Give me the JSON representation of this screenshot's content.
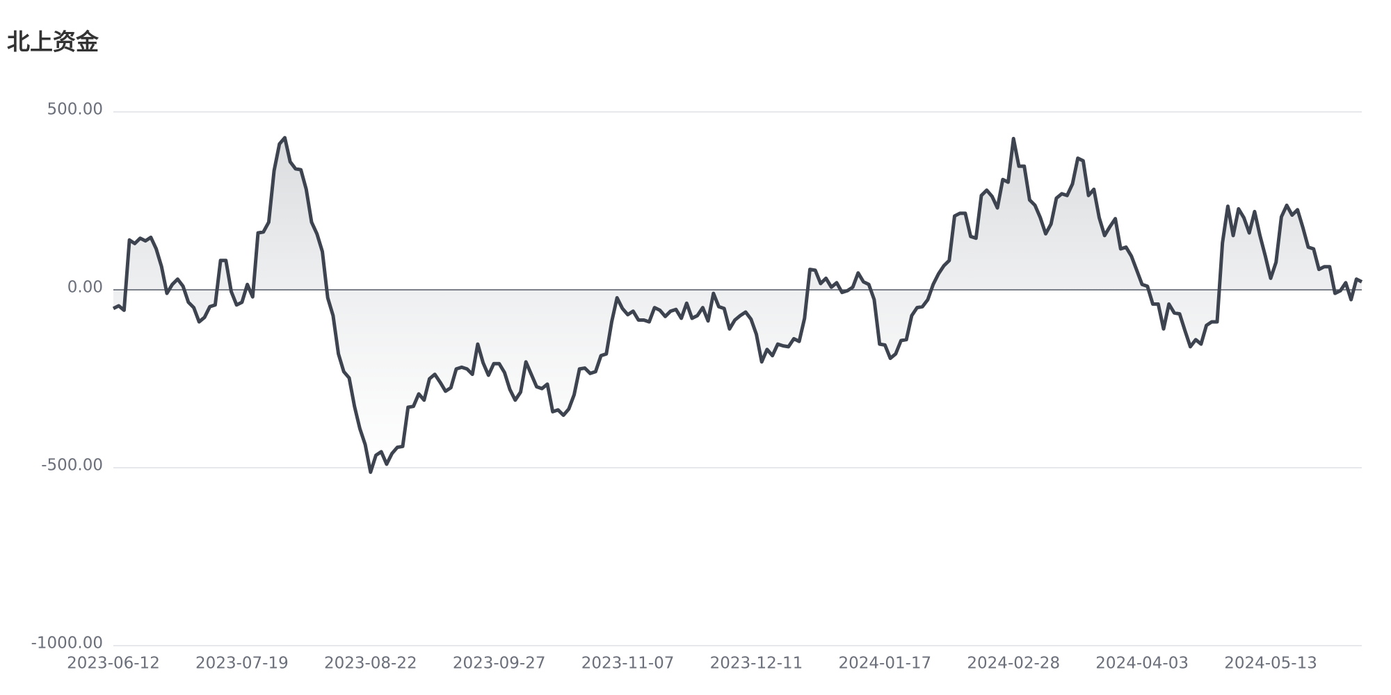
{
  "chart_data": {
    "type": "line",
    "title": "北上资金",
    "categories": [
      "2023-06-12",
      null,
      null,
      null,
      null,
      null,
      null,
      null,
      null,
      null,
      null,
      null,
      null,
      null,
      null,
      null,
      null,
      null,
      null,
      null,
      null,
      null,
      null,
      null,
      "2023-07-19",
      null,
      null,
      null,
      null,
      null,
      null,
      null,
      null,
      null,
      null,
      null,
      null,
      null,
      null,
      null,
      null,
      null,
      null,
      null,
      null,
      null,
      null,
      null,
      "2023-08-22",
      null,
      null,
      null,
      null,
      null,
      null,
      null,
      null,
      null,
      null,
      null,
      null,
      null,
      null,
      null,
      null,
      null,
      null,
      null,
      null,
      null,
      null,
      null,
      "2023-09-27",
      null,
      null,
      null,
      null,
      null,
      null,
      null,
      null,
      null,
      null,
      null,
      null,
      null,
      null,
      null,
      null,
      null,
      null,
      null,
      null,
      null,
      null,
      null,
      "2023-11-07",
      null,
      null,
      null,
      null,
      null,
      null,
      null,
      null,
      null,
      null,
      null,
      null,
      null,
      null,
      null,
      null,
      null,
      null,
      null,
      null,
      null,
      null,
      null,
      "2023-12-11",
      null,
      null,
      null,
      null,
      null,
      null,
      null,
      null,
      null,
      null,
      null,
      null,
      null,
      null,
      null,
      null,
      null,
      null,
      null,
      null,
      null,
      null,
      null,
      "2024-01-17",
      null,
      null,
      null,
      null,
      null,
      null,
      null,
      null,
      null,
      null,
      null,
      null,
      null,
      null,
      null,
      null,
      null,
      null,
      null,
      null,
      null,
      null,
      null,
      "2024-02-28",
      null,
      null,
      null,
      null,
      null,
      null,
      null,
      null,
      null,
      null,
      null,
      null,
      null,
      null,
      null,
      null,
      null,
      null,
      null,
      null,
      null,
      null,
      null,
      "2024-04-03",
      null,
      null,
      null,
      null,
      null,
      null,
      null,
      null,
      null,
      null,
      null,
      null,
      null,
      null,
      null,
      null,
      null,
      null,
      null,
      null,
      null,
      null,
      null,
      "2024-05-13",
      null,
      null,
      null,
      null,
      null,
      null,
      null,
      null,
      null,
      null,
      null,
      null,
      null,
      null,
      null,
      null,
      null
    ],
    "values": [
      -52.5,
      -45,
      -57.5,
      140,
      130,
      145,
      137.5,
      147.5,
      115,
      65,
      -10,
      15,
      30,
      10,
      -35,
      -50,
      -90,
      -77.5,
      -47.5,
      -42.5,
      82.5,
      82.5,
      -5,
      -42.5,
      -35,
      15,
      -20,
      160,
      162.5,
      190,
      335,
      410,
      427.5,
      360,
      340,
      337.5,
      282.5,
      190,
      157.5,
      107.5,
      -22.5,
      -72.5,
      -180,
      -230,
      -247.5,
      -327.5,
      -390,
      -435,
      -512.5,
      -465,
      -455,
      -490,
      -460,
      -442.5,
      -440,
      -330,
      -327.5,
      -292.5,
      -310,
      -250,
      -237.5,
      -260,
      -285,
      -275,
      -222.5,
      -217.5,
      -222.5,
      -237.5,
      -152.5,
      -205,
      -240,
      -207.5,
      -207.5,
      -232.5,
      -280,
      -310,
      -287.5,
      -202.5,
      -237.5,
      -272.5,
      -277.5,
      -265,
      -342.5,
      -337.5,
      -352.5,
      -335,
      -295,
      -222.5,
      -220,
      -235,
      -230,
      -185,
      -180,
      -90,
      -22.5,
      -52.5,
      -70,
      -60,
      -85,
      -85,
      -90,
      -50,
      -57.5,
      -75,
      -60,
      -55,
      -80,
      -37.5,
      -80,
      -72.5,
      -50,
      -87.5,
      -10,
      -47.5,
      -52.5,
      -110,
      -85,
      -72.5,
      -62.5,
      -82.5,
      -125,
      -202.5,
      -167.5,
      -185,
      -152.5,
      -157.5,
      -160,
      -137.5,
      -145,
      -80,
      57.5,
      55,
      17.5,
      32.5,
      7.5,
      20,
      -7.5,
      -2.5,
      7.5,
      47.5,
      22.5,
      15,
      -27.5,
      -152.5,
      -155,
      -192.5,
      -180,
      -142.5,
      -140,
      -72.5,
      -50,
      -47.5,
      -27.5,
      15,
      45,
      67.5,
      82.5,
      207.5,
      215,
      215,
      150,
      145,
      265,
      280,
      262.5,
      230,
      310,
      302.5,
      425,
      347.5,
      347.5,
      252.5,
      237.5,
      202.5,
      157.5,
      185,
      257.5,
      270,
      265,
      297.5,
      370,
      362.5,
      265,
      282.5,
      202.5,
      152.5,
      177.5,
      200,
      115,
      120,
      95,
      55,
      15,
      10,
      -40,
      -40,
      -110,
      -40,
      -65,
      -67.5,
      -115,
      -160,
      -140,
      -152.5,
      -100,
      -90,
      -90,
      132.5,
      235,
      152.5,
      227.5,
      202.5,
      160,
      220,
      152.5,
      95,
      32.5,
      77.5,
      205,
      237.5,
      210,
      225,
      175,
      120,
      115,
      57.5,
      65,
      65,
      -10,
      -2.5,
      20,
      -27.5,
      30,
      22.5
    ],
    "color": "#3d4450",
    "ylim": [
      -1000,
      500
    ],
    "yticks": [
      {
        "value": -1000,
        "label": "-1000.00"
      },
      {
        "value": -500,
        "label": "-500.00"
      },
      {
        "value": 0,
        "label": "0.00"
      },
      {
        "value": 500,
        "label": "500.00"
      }
    ],
    "grid": true
  }
}
